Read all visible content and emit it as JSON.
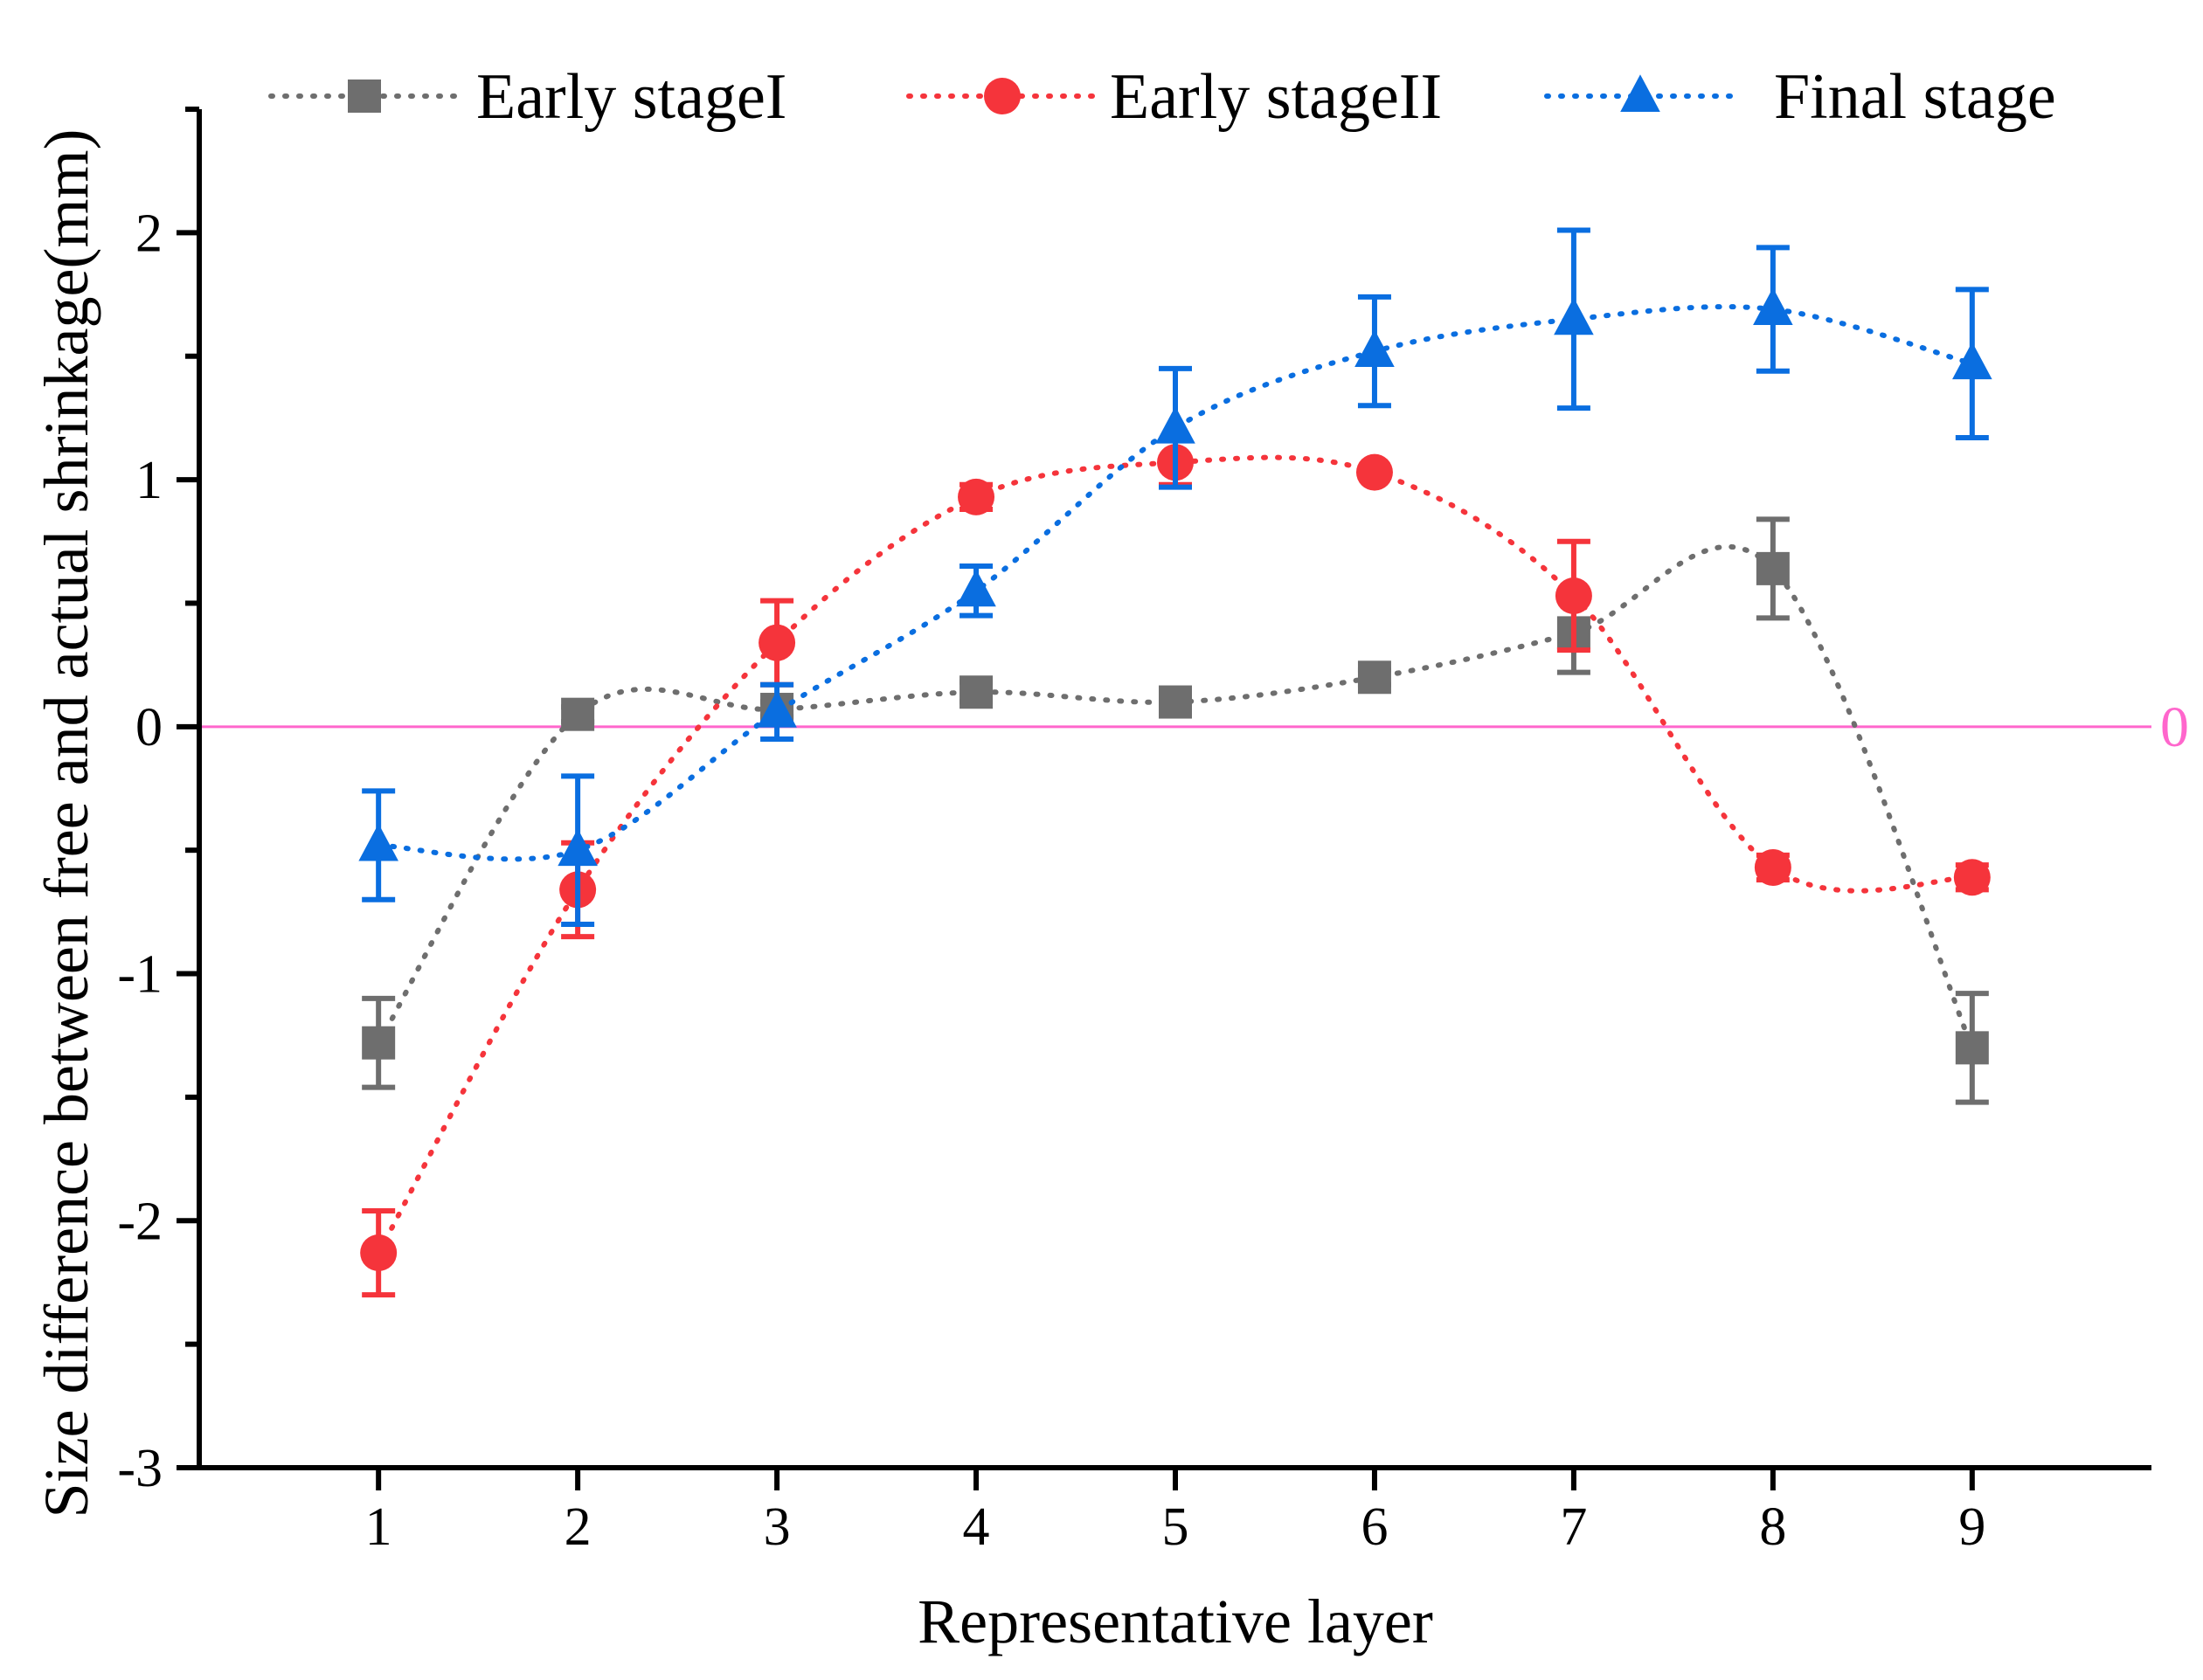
{
  "chart_data": {
    "type": "line",
    "title": "",
    "xlabel": "Representative layer",
    "ylabel": "Size difference between free and actual shrinkage(mm)",
    "x": [
      1,
      2,
      3,
      4,
      5,
      6,
      7,
      8,
      9
    ],
    "x_tick_labels": [
      "1",
      "2",
      "3",
      "4",
      "5",
      "6",
      "7",
      "8",
      "9"
    ],
    "xlim": [
      0.1,
      9.9
    ],
    "ylim": [
      -3,
      2.5
    ],
    "y_ticks": [
      -3,
      -2,
      -1,
      0,
      1,
      2
    ],
    "y_tick_labels": [
      "-3",
      "-2",
      "-1",
      "0",
      "1",
      "2"
    ],
    "grid": false,
    "legend_position": "top",
    "reference_line": {
      "value": 0,
      "label": "0",
      "color": "#ff66cc"
    },
    "series": [
      {
        "name": "Early stageI",
        "marker": "square",
        "color": "#6e6e6e",
        "values": [
          -1.28,
          0.05,
          0.07,
          0.14,
          0.1,
          0.2,
          0.38,
          0.64,
          -1.3
        ],
        "errors": [
          0.18,
          0.03,
          0.03,
          0.04,
          0.04,
          0.03,
          0.16,
          0.2,
          0.22
        ]
      },
      {
        "name": "Early stageII",
        "marker": "circle",
        "color": "#f5343b",
        "values": [
          -2.13,
          -0.66,
          0.34,
          0.93,
          1.07,
          1.03,
          0.53,
          -0.57,
          -0.61
        ],
        "errors": [
          0.17,
          0.19,
          0.17,
          0.05,
          0.09,
          0.02,
          0.22,
          0.05,
          0.05
        ]
      },
      {
        "name": "Final stage",
        "marker": "triangle",
        "color": "#0a6ee0",
        "values": [
          -0.48,
          -0.5,
          0.06,
          0.55,
          1.21,
          1.52,
          1.65,
          1.69,
          1.47
        ],
        "errors": [
          0.22,
          0.3,
          0.11,
          0.1,
          0.24,
          0.22,
          0.36,
          0.25,
          0.3
        ]
      }
    ]
  }
}
